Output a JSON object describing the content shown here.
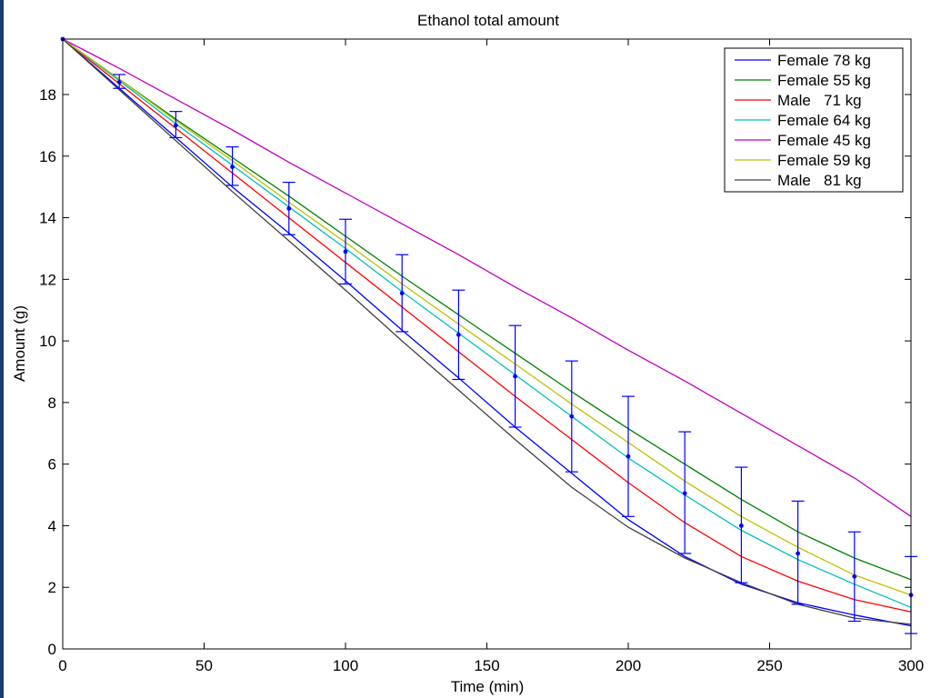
{
  "chart_data": {
    "type": "line",
    "title": "Ethanol total amount",
    "xlabel": "Time (min)",
    "ylabel": "Amount (g)",
    "xlim": [
      0,
      300
    ],
    "ylim": [
      0,
      19.8
    ],
    "xticks": [
      "0",
      "50",
      "100",
      "150",
      "200",
      "250",
      "300"
    ],
    "yticks": [
      "0",
      "2",
      "4",
      "6",
      "8",
      "10",
      "12",
      "14",
      "16",
      "18"
    ],
    "grid": false,
    "legend_position": "top-right",
    "x": [
      0,
      20,
      40,
      60,
      80,
      100,
      120,
      140,
      160,
      180,
      200,
      220,
      240,
      260,
      280,
      300
    ],
    "series": [
      {
        "name": "Female 78 kg",
        "color": "#0000ff",
        "values": [
          19.8,
          18.2,
          16.6,
          15.0,
          13.5,
          11.95,
          10.35,
          8.8,
          7.2,
          5.7,
          4.2,
          3.0,
          2.1,
          1.5,
          1.1,
          0.75
        ]
      },
      {
        "name": "Female 55 kg",
        "color": "#008000",
        "values": [
          19.8,
          18.5,
          17.2,
          15.95,
          14.7,
          13.4,
          12.1,
          10.85,
          9.6,
          8.35,
          7.15,
          6.0,
          4.85,
          3.8,
          2.95,
          2.25
        ]
      },
      {
        "name": "Male   71 kg",
        "color": "#ff0000",
        "values": [
          19.8,
          18.35,
          16.9,
          15.45,
          14.0,
          12.55,
          11.1,
          9.65,
          8.2,
          6.8,
          5.4,
          4.1,
          3.0,
          2.2,
          1.6,
          1.2
        ]
      },
      {
        "name": "Female 64 kg",
        "color": "#00bfbf",
        "values": [
          19.8,
          18.45,
          17.05,
          15.7,
          14.35,
          13.0,
          11.6,
          10.25,
          8.9,
          7.55,
          6.2,
          5.0,
          3.85,
          2.9,
          2.1,
          1.35
        ]
      },
      {
        "name": "Female 45 kg",
        "color": "#bf00bf",
        "values": [
          19.8,
          18.85,
          17.85,
          16.85,
          15.8,
          14.8,
          13.8,
          12.8,
          11.75,
          10.75,
          9.7,
          8.7,
          7.65,
          6.6,
          5.55,
          4.3
        ]
      },
      {
        "name": "Female 59 kg",
        "color": "#bfbf00",
        "values": [
          19.8,
          18.5,
          17.15,
          15.85,
          14.5,
          13.2,
          11.85,
          10.55,
          9.25,
          7.95,
          6.7,
          5.45,
          4.3,
          3.3,
          2.4,
          1.75
        ]
      },
      {
        "name": "Male   81 kg",
        "color": "#404040",
        "values": [
          19.8,
          18.15,
          16.5,
          14.85,
          13.25,
          11.65,
          10.0,
          8.4,
          6.8,
          5.25,
          3.95,
          2.95,
          2.15,
          1.45,
          1.0,
          0.8
        ]
      }
    ],
    "error_bars": {
      "color": "#0000ff",
      "x": [
        0,
        20,
        40,
        60,
        80,
        100,
        120,
        140,
        160,
        180,
        200,
        220,
        240,
        260,
        280,
        300
      ],
      "mean": [
        19.8,
        18.4,
        17.0,
        15.65,
        14.3,
        12.9,
        11.55,
        10.2,
        8.85,
        7.55,
        6.25,
        5.05,
        4.0,
        3.1,
        2.35,
        1.75
      ],
      "lower": [
        19.8,
        18.2,
        16.6,
        15.05,
        13.45,
        11.85,
        10.3,
        8.75,
        7.2,
        5.75,
        4.3,
        3.1,
        2.15,
        1.45,
        0.9,
        0.5
      ],
      "upper": [
        19.8,
        18.65,
        17.45,
        16.3,
        15.15,
        13.95,
        12.8,
        11.65,
        10.5,
        9.35,
        8.2,
        7.05,
        5.9,
        4.8,
        3.8,
        3.0
      ]
    }
  }
}
